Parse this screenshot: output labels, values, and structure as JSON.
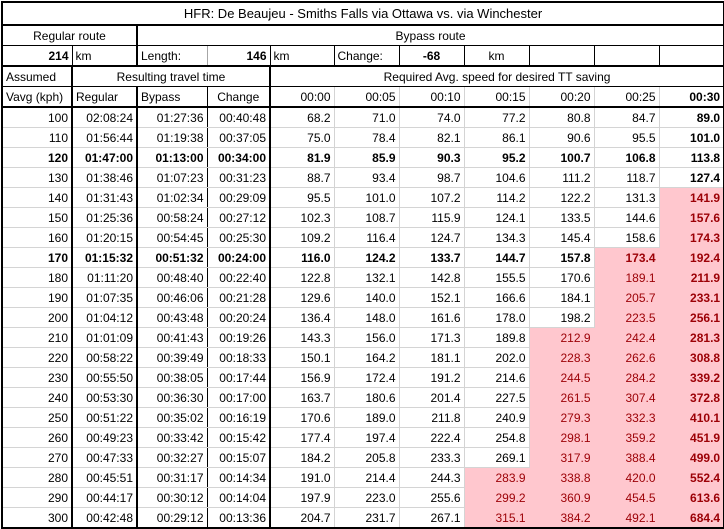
{
  "title": "HFR: De Beaujeu - Smiths Falls via Ottawa vs. via Winchester",
  "route_summary": {
    "regular_route_label": "Regular route",
    "bypass_route_label": "Bypass route",
    "regular_length_value": "214",
    "regular_length_unit": "km",
    "length_label": "Length:",
    "bypass_length_value": "146",
    "bypass_length_unit": "km",
    "change_label": "Change:",
    "change_value": "-68",
    "change_unit": "km"
  },
  "table_headers": {
    "assumed_label": "Assumed",
    "vavg_label": "Vavg (kph)",
    "travel_time_label": "Resulting travel time",
    "required_speed_label": "Required Avg. speed for desired TT saving",
    "regular_label": "Regular",
    "bypass_label": "Bypass",
    "change_label": "Change",
    "time_cols": [
      "00:00",
      "00:05",
      "00:10",
      "00:15",
      "00:20",
      "00:25",
      "00:30"
    ]
  },
  "formatting": {
    "bold_rows": [
      120,
      170
    ],
    "bold_last_speed_column": true,
    "highlight_fill": "#FFC7CE",
    "highlight_text": "#9C0006",
    "highlight_rule": "required speed value greater than assumed Vavg"
  },
  "rows": [
    {
      "vavg": "100",
      "regular": "02:08:24",
      "bypass": "01:27:36",
      "change": "00:40:48",
      "speeds": [
        "68.2",
        "71.0",
        "74.0",
        "77.2",
        "80.8",
        "84.7",
        "89.0"
      ]
    },
    {
      "vavg": "110",
      "regular": "01:56:44",
      "bypass": "01:19:38",
      "change": "00:37:05",
      "speeds": [
        "75.0",
        "78.4",
        "82.1",
        "86.1",
        "90.6",
        "95.5",
        "101.0"
      ]
    },
    {
      "vavg": "120",
      "regular": "01:47:00",
      "bypass": "01:13:00",
      "change": "00:34:00",
      "speeds": [
        "81.9",
        "85.9",
        "90.3",
        "95.2",
        "100.7",
        "106.8",
        "113.8"
      ]
    },
    {
      "vavg": "130",
      "regular": "01:38:46",
      "bypass": "01:07:23",
      "change": "00:31:23",
      "speeds": [
        "88.7",
        "93.4",
        "98.7",
        "104.6",
        "111.2",
        "118.7",
        "127.4"
      ]
    },
    {
      "vavg": "140",
      "regular": "01:31:43",
      "bypass": "01:02:34",
      "change": "00:29:09",
      "speeds": [
        "95.5",
        "101.0",
        "107.2",
        "114.2",
        "122.2",
        "131.3",
        "141.9"
      ]
    },
    {
      "vavg": "150",
      "regular": "01:25:36",
      "bypass": "00:58:24",
      "change": "00:27:12",
      "speeds": [
        "102.3",
        "108.7",
        "115.9",
        "124.1",
        "133.5",
        "144.6",
        "157.6"
      ]
    },
    {
      "vavg": "160",
      "regular": "01:20:15",
      "bypass": "00:54:45",
      "change": "00:25:30",
      "speeds": [
        "109.2",
        "116.4",
        "124.7",
        "134.3",
        "145.4",
        "158.6",
        "174.3"
      ]
    },
    {
      "vavg": "170",
      "regular": "01:15:32",
      "bypass": "00:51:32",
      "change": "00:24:00",
      "speeds": [
        "116.0",
        "124.2",
        "133.7",
        "144.7",
        "157.8",
        "173.4",
        "192.4"
      ]
    },
    {
      "vavg": "180",
      "regular": "01:11:20",
      "bypass": "00:48:40",
      "change": "00:22:40",
      "speeds": [
        "122.8",
        "132.1",
        "142.8",
        "155.5",
        "170.6",
        "189.1",
        "211.9"
      ]
    },
    {
      "vavg": "190",
      "regular": "01:07:35",
      "bypass": "00:46:06",
      "change": "00:21:28",
      "speeds": [
        "129.6",
        "140.0",
        "152.1",
        "166.6",
        "184.1",
        "205.7",
        "233.1"
      ]
    },
    {
      "vavg": "200",
      "regular": "01:04:12",
      "bypass": "00:43:48",
      "change": "00:20:24",
      "speeds": [
        "136.4",
        "148.0",
        "161.6",
        "178.0",
        "198.2",
        "223.5",
        "256.1"
      ]
    },
    {
      "vavg": "210",
      "regular": "01:01:09",
      "bypass": "00:41:43",
      "change": "00:19:26",
      "speeds": [
        "143.3",
        "156.0",
        "171.3",
        "189.8",
        "212.9",
        "242.4",
        "281.3"
      ]
    },
    {
      "vavg": "220",
      "regular": "00:58:22",
      "bypass": "00:39:49",
      "change": "00:18:33",
      "speeds": [
        "150.1",
        "164.2",
        "181.1",
        "202.0",
        "228.3",
        "262.6",
        "308.8"
      ]
    },
    {
      "vavg": "230",
      "regular": "00:55:50",
      "bypass": "00:38:05",
      "change": "00:17:44",
      "speeds": [
        "156.9",
        "172.4",
        "191.2",
        "214.6",
        "244.5",
        "284.2",
        "339.2"
      ]
    },
    {
      "vavg": "240",
      "regular": "00:53:30",
      "bypass": "00:36:30",
      "change": "00:17:00",
      "speeds": [
        "163.7",
        "180.6",
        "201.4",
        "227.5",
        "261.5",
        "307.4",
        "372.8"
      ]
    },
    {
      "vavg": "250",
      "regular": "00:51:22",
      "bypass": "00:35:02",
      "change": "00:16:19",
      "speeds": [
        "170.6",
        "189.0",
        "211.8",
        "240.9",
        "279.3",
        "332.3",
        "410.1"
      ]
    },
    {
      "vavg": "260",
      "regular": "00:49:23",
      "bypass": "00:33:42",
      "change": "00:15:42",
      "speeds": [
        "177.4",
        "197.4",
        "222.4",
        "254.8",
        "298.1",
        "359.2",
        "451.9"
      ]
    },
    {
      "vavg": "270",
      "regular": "00:47:33",
      "bypass": "00:32:27",
      "change": "00:15:07",
      "speeds": [
        "184.2",
        "205.8",
        "233.3",
        "269.1",
        "317.9",
        "388.4",
        "499.0"
      ]
    },
    {
      "vavg": "280",
      "regular": "00:45:51",
      "bypass": "00:31:17",
      "change": "00:14:34",
      "speeds": [
        "191.0",
        "214.4",
        "244.3",
        "283.9",
        "338.8",
        "420.0",
        "552.4"
      ]
    },
    {
      "vavg": "290",
      "regular": "00:44:17",
      "bypass": "00:30:12",
      "change": "00:14:04",
      "speeds": [
        "197.9",
        "223.0",
        "255.6",
        "299.2",
        "360.9",
        "454.5",
        "613.6"
      ]
    },
    {
      "vavg": "300",
      "regular": "00:42:48",
      "bypass": "00:29:12",
      "change": "00:13:36",
      "speeds": [
        "204.7",
        "231.7",
        "267.1",
        "315.1",
        "384.2",
        "492.1",
        "684.4"
      ]
    }
  ]
}
